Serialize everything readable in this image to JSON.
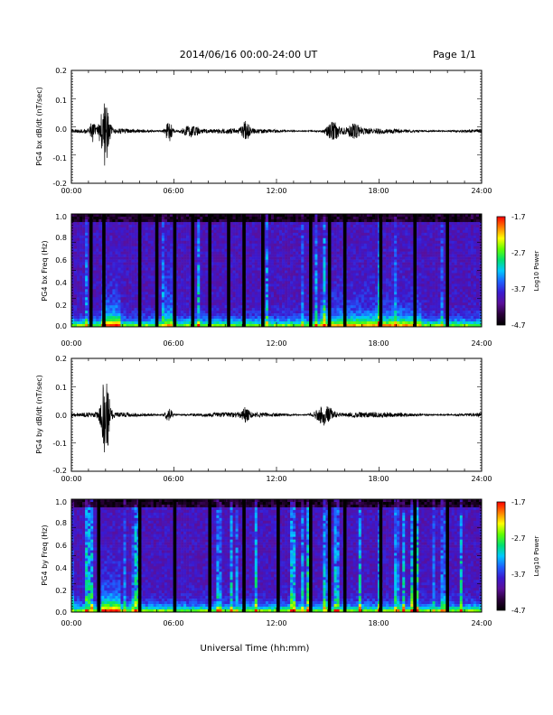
{
  "page": {
    "title": "2014/06/16  00:00-24:00 UT",
    "page_label": "Page 1/1",
    "xlabel": "Universal Time (hh:mm)"
  },
  "colorbar": {
    "label": "Log10 Power",
    "ticks": [
      "-1.7",
      "-2.7",
      "-3.7",
      "-4.7"
    ],
    "stops": [
      "#000000",
      "#2a003a",
      "#5a0f9a",
      "#3a1ad0",
      "#1e60ff",
      "#00c8ff",
      "#00e070",
      "#60ff00",
      "#ffff00",
      "#ff8000",
      "#ff0000"
    ]
  },
  "chart_data": [
    {
      "type": "line",
      "title": "",
      "xlabel": "",
      "ylabel": "PG4 bx dB/dt (nT/sec)",
      "x_ticks": [
        "00:00",
        "06:00",
        "12:00",
        "18:00",
        "24:00"
      ],
      "y_ticks": [
        "0.2",
        "0.1",
        "0.0",
        "-0.1",
        "-0.2"
      ],
      "xlim": [
        0,
        24
      ],
      "ylim": [
        -0.2,
        0.2
      ],
      "baseline": -0.015,
      "events": [
        {
          "t": 1.95,
          "amp": 0.12,
          "w": 0.25
        },
        {
          "t": 1.25,
          "amp": 0.03,
          "w": 0.15
        },
        {
          "t": 5.7,
          "amp": 0.04,
          "w": 0.2
        },
        {
          "t": 7.0,
          "amp": 0.02,
          "w": 0.5
        },
        {
          "t": 10.2,
          "amp": 0.03,
          "w": 0.2
        },
        {
          "t": 15.3,
          "amp": 0.03,
          "w": 0.4
        },
        {
          "t": 16.5,
          "amp": 0.02,
          "w": 0.4
        }
      ]
    },
    {
      "type": "heatmap",
      "title": "",
      "xlabel": "",
      "ylabel": "PG4 bx Freq (Hz)",
      "x_ticks": [
        "00:00",
        "06:00",
        "12:00",
        "18:00",
        "24:00"
      ],
      "y_ticks": [
        "1.0",
        "0.8",
        "0.6",
        "0.4",
        "0.2",
        "0.0"
      ],
      "xlim": [
        0,
        24
      ],
      "ylim": [
        0,
        1.0
      ],
      "zlim": [
        -4.7,
        -1.7
      ],
      "gaps_hours": [
        1.15,
        1.9,
        4.0,
        5.0,
        6.05,
        7.1,
        8.1,
        9.2,
        10.1,
        11.2,
        14.0,
        15.1,
        16.0,
        18.1,
        20.1,
        22.0
      ]
    },
    {
      "type": "line",
      "title": "",
      "xlabel": "",
      "ylabel": "PG4 by dB/dt (nT/sec)",
      "x_ticks": [
        "00:00",
        "06:00",
        "12:00",
        "18:00",
        "24:00"
      ],
      "y_ticks": [
        "0.2",
        "0.1",
        "0.0",
        "-0.1",
        "-0.2"
      ],
      "xlim": [
        0,
        24
      ],
      "ylim": [
        -0.2,
        0.2
      ],
      "baseline": 0.0,
      "events": [
        {
          "t": 2.0,
          "amp": 0.14,
          "w": 0.25
        },
        {
          "t": 5.7,
          "amp": 0.025,
          "w": 0.2
        },
        {
          "t": 10.2,
          "amp": 0.02,
          "w": 0.2
        },
        {
          "t": 14.8,
          "amp": 0.035,
          "w": 0.5
        }
      ]
    },
    {
      "type": "heatmap",
      "title": "",
      "xlabel": "",
      "ylabel": "PG4 by Freq (Hz)",
      "x_ticks": [
        "00:00",
        "06:00",
        "12:00",
        "18:00",
        "24:00"
      ],
      "y_ticks": [
        "1.0",
        "0.8",
        "0.6",
        "0.4",
        "0.2",
        "0.0"
      ],
      "xlim": [
        0,
        24
      ],
      "ylim": [
        0,
        1.0
      ],
      "zlim": [
        -4.7,
        -1.7
      ],
      "gaps_hours": [
        1.6,
        4.0,
        6.05,
        8.1,
        10.1,
        12.1,
        14.0,
        15.1,
        16.0,
        18.1,
        20.1,
        22.0
      ]
    }
  ]
}
